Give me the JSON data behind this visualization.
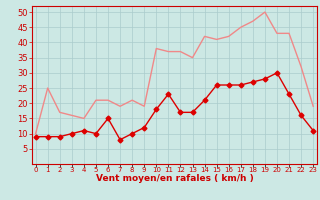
{
  "x": [
    0,
    1,
    2,
    3,
    4,
    5,
    6,
    7,
    8,
    9,
    10,
    11,
    12,
    13,
    14,
    15,
    16,
    17,
    18,
    19,
    20,
    21,
    22,
    23
  ],
  "rafales": [
    10,
    25,
    17,
    16,
    15,
    21,
    21,
    19,
    21,
    19,
    38,
    37,
    37,
    35,
    42,
    41,
    42,
    45,
    47,
    50,
    43,
    43,
    32,
    19
  ],
  "moyen": [
    9,
    9,
    9,
    10,
    11,
    10,
    15,
    8,
    10,
    12,
    18,
    23,
    17,
    17,
    21,
    26,
    26,
    26,
    27,
    28,
    30,
    23,
    16,
    11
  ],
  "bg_color": "#cce8e4",
  "grid_color": "#aacccc",
  "line_color_rafales": "#f08888",
  "line_color_moyen": "#dd0000",
  "marker_color_moyen": "#dd0000",
  "xlabel": "Vent moyen/en rafales ( km/h )",
  "xlabel_color": "#cc0000",
  "tick_color": "#cc0000",
  "spine_color": "#cc0000",
  "ylim": [
    0,
    52
  ],
  "yticks": [
    5,
    10,
    15,
    20,
    25,
    30,
    35,
    40,
    45,
    50
  ],
  "xlim": [
    -0.3,
    23.3
  ]
}
